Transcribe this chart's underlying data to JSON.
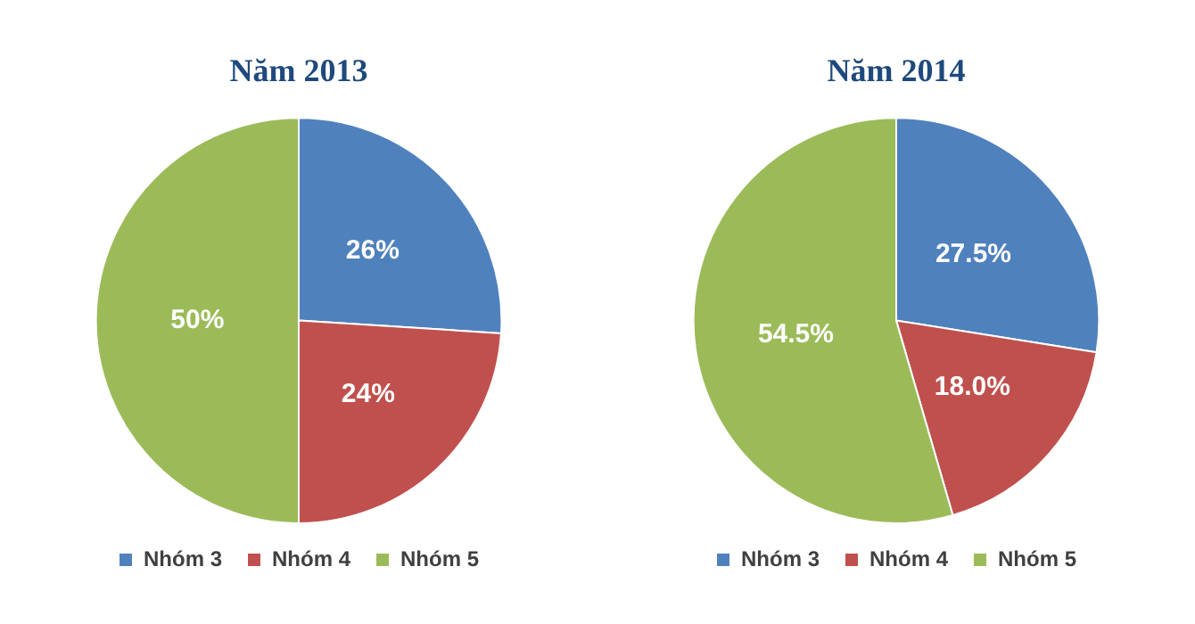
{
  "chart_data": [
    {
      "type": "pie",
      "title": "Năm 2013",
      "categories": [
        "Nhóm 3",
        "Nhóm 4",
        "Nhóm 5"
      ],
      "values": [
        26,
        24,
        50
      ],
      "colors": [
        "#4f81bd",
        "#c0504d",
        "#9bbb59"
      ],
      "value_labels": [
        "26%",
        "24%",
        "50%"
      ],
      "legend": "bottom"
    },
    {
      "type": "pie",
      "title": "Năm 2014",
      "categories": [
        "Nhóm 3",
        "Nhóm 4",
        "Nhóm 5"
      ],
      "values": [
        27.5,
        18.0,
        54.5
      ],
      "colors": [
        "#4f81bd",
        "#c0504d",
        "#9bbb59"
      ],
      "value_labels": [
        "27.5%",
        "18.0%",
        "54.5%"
      ],
      "legend": "bottom"
    }
  ]
}
